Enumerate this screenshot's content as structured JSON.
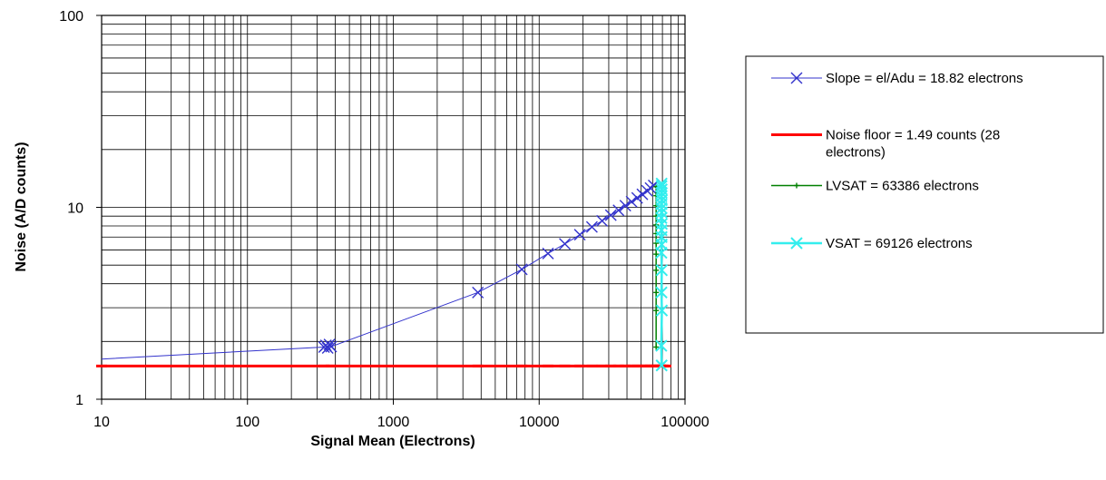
{
  "chart_data": {
    "type": "line",
    "title": "",
    "xlabel": "Signal Mean (Electrons)",
    "ylabel": "Noise (A/D counts)",
    "x_scale": "log",
    "y_scale": "log",
    "xlim": [
      10,
      100000
    ],
    "ylim": [
      1,
      100
    ],
    "x_ticks": [
      "10",
      "100",
      "1000",
      "10000",
      "100000"
    ],
    "y_ticks": [
      "1",
      "10",
      "100"
    ],
    "grid": true,
    "legend_position": "right",
    "series": [
      {
        "name": "Slope = el/Adu = 18.82 electrons",
        "color": "#3333cc",
        "marker": "x",
        "x": [
          10,
          335,
          345,
          355,
          365,
          375,
          3800,
          7600,
          11500,
          15000,
          19000,
          23000,
          27000,
          31000,
          35000,
          39000,
          43000,
          47000,
          51000,
          55000,
          58000,
          61000
        ],
        "y": [
          1.62,
          1.87,
          1.91,
          1.85,
          1.93,
          1.88,
          3.6,
          4.75,
          5.75,
          6.45,
          7.2,
          7.9,
          8.5,
          9.1,
          9.65,
          10.2,
          10.7,
          11.2,
          11.7,
          12.2,
          12.6,
          13.0
        ]
      },
      {
        "name": "Noise floor = 1.49 counts (28 electrons)",
        "color": "#ff0000",
        "marker": "dash",
        "x": [
          10,
          335,
          375,
          3800,
          7600,
          11500,
          15000,
          19000,
          23000,
          27000,
          31000,
          35000,
          39000,
          43000,
          47000,
          51000,
          55000,
          58000,
          61000,
          64000,
          66000,
          68000,
          70000,
          72000,
          74000
        ],
        "y": [
          1.49,
          1.49,
          1.49,
          1.49,
          1.49,
          1.49,
          1.49,
          1.49,
          1.49,
          1.49,
          1.49,
          1.49,
          1.49,
          1.49,
          1.49,
          1.49,
          1.49,
          1.49,
          1.49,
          1.49,
          1.49,
          1.49,
          1.49,
          1.49,
          1.49
        ]
      },
      {
        "name": "LVSAT = 63386 electrons",
        "color": "#008000",
        "marker": "plus",
        "x": [
          63386,
          63386,
          63386,
          63386,
          63386,
          63386,
          63386,
          63386,
          63386,
          63386,
          63386,
          63386
        ],
        "y": [
          1.87,
          2.9,
          3.6,
          4.7,
          5.7,
          6.5,
          7.3,
          8.1,
          9.0,
          10.2,
          11.5,
          12.8
        ]
      },
      {
        "name": "VSAT = 69126 electrons",
        "color": "#33eeee",
        "marker": "x",
        "x": [
          69126,
          68800,
          69400,
          69000,
          69300,
          68900,
          69200,
          69100,
          69000,
          69300,
          68900,
          69200,
          69100,
          69000,
          69300,
          68900,
          69100,
          69200,
          69000,
          69126
        ],
        "y": [
          1.5,
          1.9,
          2.9,
          3.6,
          4.7,
          5.8,
          6.4,
          7.0,
          7.6,
          8.2,
          8.8,
          9.4,
          9.9,
          10.4,
          10.9,
          11.4,
          11.9,
          12.4,
          12.9,
          13.3
        ]
      }
    ]
  }
}
